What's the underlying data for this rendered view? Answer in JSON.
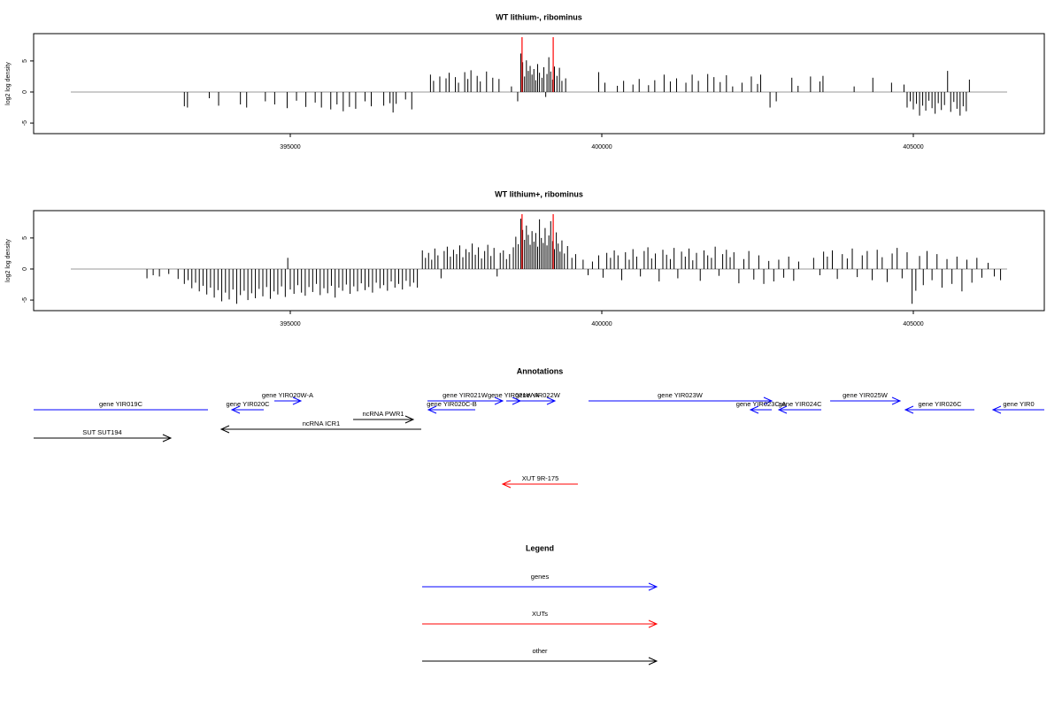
{
  "chart_data": [
    {
      "type": "spike",
      "title": "WT lithium-, ribominus",
      "ylabel": "log2 log density",
      "xlim": [
        390881,
        407102
      ],
      "ylim": [
        -6.7,
        9.4
      ],
      "xticks": [
        395000,
        400000,
        405000
      ],
      "yticks": [
        -5,
        0,
        5
      ],
      "color": "#000000",
      "baseline_color": "#999999",
      "highlights": {
        "color": "#ff0000",
        "x": [
          398720,
          399220
        ]
      },
      "x": [
        393300,
        393350,
        393700,
        393850,
        394200,
        394300,
        394600,
        394750,
        394950,
        395100,
        395250,
        395400,
        395500,
        395650,
        395750,
        395850,
        395950,
        396050,
        396200,
        396300,
        396500,
        396600,
        396650,
        396700,
        396850,
        396950,
        397250,
        397300,
        397400,
        397500,
        397550,
        397650,
        397700,
        397800,
        397850,
        397900,
        398000,
        398050,
        398150,
        398250,
        398350,
        398550,
        398650,
        398700,
        398730,
        398760,
        398790,
        398820,
        398850,
        398880,
        398910,
        398940,
        398970,
        399000,
        399040,
        399070,
        399100,
        399120,
        399150,
        399180,
        399210,
        399240,
        399280,
        399320,
        399360,
        399420,
        399950,
        400050,
        400250,
        400350,
        400500,
        400600,
        400750,
        400850,
        401000,
        401100,
        401200,
        401350,
        401450,
        401550,
        401700,
        401800,
        401900,
        402000,
        402100,
        402250,
        402400,
        402500,
        402550,
        402700,
        402800,
        403050,
        403150,
        403350,
        403500,
        403550,
        404050,
        404350,
        404650,
        404850,
        404900,
        404950,
        405000,
        405050,
        405100,
        405150,
        405200,
        405250,
        405300,
        405350,
        405400,
        405450,
        405500,
        405550,
        405600,
        405650,
        405700,
        405750,
        405800,
        405850,
        405900
      ],
      "values": [
        -2.3,
        -2.5,
        -1,
        -2.2,
        -2,
        -2.5,
        -1.5,
        -2,
        -2.6,
        -1.4,
        -2.4,
        -1.7,
        -2.5,
        -2.8,
        -2,
        -3.1,
        -2.4,
        -2.7,
        -1.5,
        -2.3,
        -2.2,
        -1.8,
        -3.3,
        -1.9,
        -1.2,
        -2.8,
        2.8,
        1.8,
        2.5,
        2.2,
        3.1,
        2.4,
        1.5,
        3.2,
        2.1,
        3.5,
        2.6,
        1.7,
        3.3,
        2.3,
        2.1,
        0.9,
        -1.5,
        6.2,
        4.8,
        2.5,
        5.1,
        3.4,
        4.2,
        2.8,
        3.7,
        1.9,
        4.5,
        3.1,
        2.3,
        4.0,
        -0.8,
        2.9,
        5.6,
        3.3,
        2.0,
        4.1,
        2.6,
        3.9,
        1.8,
        2.2,
        3.2,
        1.5,
        1.0,
        1.8,
        1.2,
        2.1,
        1.1,
        1.9,
        2.8,
        1.7,
        2.2,
        1.5,
        2.8,
        1.8,
        2.9,
        2.4,
        1.6,
        2.7,
        0.9,
        1.5,
        2.5,
        1.3,
        2.8,
        -2.5,
        -1.5,
        2.3,
        1.0,
        2.5,
        1.7,
        2.6,
        0.9,
        2.3,
        1.5,
        1.2,
        -2.5,
        -1.5,
        -2.8,
        -1.9,
        -3.8,
        -2.2,
        -3.0,
        -1.4,
        -2.6,
        -3.5,
        -1.8,
        -2.9,
        -2.1,
        3.4,
        -3.2,
        -1.6,
        -2.7,
        -3.8,
        -2.3,
        -3.1,
        2.0
      ]
    },
    {
      "type": "spike",
      "title": "WT lithium+, ribominus",
      "ylabel": "log2 log density",
      "xlim": [
        390881,
        407102
      ],
      "ylim": [
        -6.7,
        9.4
      ],
      "xticks": [
        395000,
        400000,
        405000
      ],
      "yticks": [
        -5,
        0,
        5
      ],
      "color": "#000000",
      "baseline_color": "#999999",
      "highlights": {
        "color": "#ff0000",
        "x": [
          398720,
          399220
        ]
      },
      "x": [
        392700,
        392800,
        392900,
        393050,
        393200,
        393300,
        393360,
        393420,
        393480,
        393540,
        393600,
        393660,
        393720,
        393780,
        393840,
        393900,
        393960,
        394020,
        394080,
        394140,
        394200,
        394260,
        394320,
        394380,
        394440,
        394500,
        394560,
        394620,
        394680,
        394740,
        394800,
        394860,
        394920,
        394960,
        395000,
        395060,
        395120,
        395180,
        395240,
        395300,
        395360,
        395420,
        395480,
        395540,
        395600,
        395660,
        395720,
        395780,
        395840,
        395900,
        395960,
        396020,
        396080,
        396140,
        396200,
        396260,
        396320,
        396380,
        396440,
        396500,
        396560,
        396620,
        396680,
        396740,
        396800,
        396860,
        396920,
        396980,
        397040,
        397120,
        397170,
        397220,
        397270,
        397320,
        397370,
        397420,
        397470,
        397520,
        397570,
        397620,
        397670,
        397720,
        397770,
        397820,
        397870,
        397920,
        397970,
        398020,
        398070,
        398120,
        398170,
        398220,
        398270,
        398320,
        398370,
        398420,
        398470,
        398520,
        398580,
        398620,
        398660,
        398700,
        398730,
        398760,
        398790,
        398820,
        398850,
        398880,
        398910,
        398940,
        398970,
        399000,
        399030,
        399060,
        399090,
        399120,
        399150,
        399180,
        399210,
        399240,
        399270,
        399300,
        399330,
        399360,
        399400,
        399450,
        399520,
        399580,
        399700,
        399780,
        399850,
        399950,
        400020,
        400080,
        400140,
        400200,
        400260,
        400320,
        400380,
        400440,
        400500,
        400560,
        400620,
        400680,
        400740,
        400800,
        400860,
        400920,
        400980,
        401040,
        401100,
        401160,
        401220,
        401280,
        401340,
        401400,
        401460,
        401520,
        401580,
        401640,
        401700,
        401760,
        401820,
        401880,
        401940,
        402000,
        402060,
        402120,
        402200,
        402280,
        402360,
        402440,
        402520,
        402600,
        402680,
        402760,
        402840,
        402920,
        403000,
        403080,
        403160,
        403400,
        403500,
        403560,
        403620,
        403700,
        403780,
        403860,
        403940,
        404020,
        404100,
        404180,
        404260,
        404340,
        404420,
        404500,
        404580,
        404660,
        404740,
        404820,
        404900,
        404980,
        405040,
        405100,
        405160,
        405220,
        405300,
        405380,
        405460,
        405540,
        405620,
        405700,
        405780,
        405860,
        405940,
        406020,
        406100,
        406200,
        406300,
        406400
      ],
      "values": [
        -1.5,
        -1,
        -1.2,
        -0.8,
        -1.6,
        -2.4,
        -1.8,
        -3.1,
        -2.2,
        -3.6,
        -2.7,
        -4.1,
        -3.0,
        -4.6,
        -3.4,
        -5.2,
        -3.8,
        -4.9,
        -3.3,
        -5.6,
        -4.2,
        -3.5,
        -5.0,
        -3.9,
        -4.7,
        -3.2,
        -4.4,
        -2.9,
        -4.8,
        -3.6,
        -4.1,
        -2.8,
        -4.5,
        1.8,
        -3.3,
        -4.0,
        -2.6,
        -3.8,
        -4.3,
        -2.9,
        -3.7,
        -2.4,
        -4.2,
        -3.1,
        -3.9,
        -2.7,
        -4.6,
        -3.0,
        -3.5,
        -2.5,
        -4.0,
        -2.8,
        -3.6,
        -2.3,
        -3.4,
        -2.9,
        -3.8,
        -2.2,
        -3.1,
        -2.6,
        -3.5,
        -2.0,
        -3.0,
        -2.4,
        -3.3,
        -1.9,
        -2.8,
        -2.2,
        -3.0,
        3.0,
        1.8,
        2.6,
        1.5,
        3.3,
        2.2,
        -1.5,
        2.9,
        3.6,
        2.0,
        3.1,
        2.4,
        3.8,
        1.9,
        3.2,
        2.7,
        4.1,
        2.3,
        3.5,
        1.7,
        2.9,
        3.9,
        2.1,
        3.4,
        -1.2,
        2.6,
        3.0,
        1.6,
        2.4,
        3.5,
        5.2,
        4.0,
        8.1,
        6.3,
        4.7,
        7.0,
        5.5,
        3.9,
        6.1,
        4.4,
        5.8,
        3.6,
        8.0,
        5.0,
        4.2,
        6.6,
        3.8,
        5.4,
        7.7,
        4.5,
        3.2,
        5.9,
        4.1,
        2.8,
        4.6,
        2.5,
        3.7,
        1.8,
        2.4,
        1.5,
        -1.0,
        1.2,
        2.2,
        -1.4,
        2.6,
        1.8,
        3.0,
        2.2,
        -1.8,
        2.7,
        1.5,
        3.2,
        2.0,
        -1.2,
        2.9,
        3.5,
        1.7,
        2.5,
        -2.0,
        3.1,
        2.3,
        1.6,
        3.4,
        -1.5,
        2.8,
        2.0,
        3.3,
        1.4,
        2.6,
        -1.9,
        3.0,
        2.2,
        1.8,
        3.6,
        -1.1,
        2.4,
        3.1,
        1.9,
        2.7,
        -2.3,
        1.6,
        2.9,
        -1.7,
        2.2,
        -2.4,
        1.3,
        -2.0,
        1.5,
        -1.4,
        2.0,
        -1.9,
        1.2,
        1.8,
        -1.0,
        2.8,
        2.0,
        3.0,
        -1.6,
        2.4,
        1.7,
        3.3,
        -1.3,
        2.2,
        2.9,
        -1.8,
        3.1,
        1.9,
        -2.1,
        2.5,
        3.4,
        -1.5,
        2.7,
        -5.6,
        -3.5,
        2.1,
        -2.6,
        2.9,
        -1.8,
        2.4,
        -3.0,
        1.6,
        -2.4,
        2.0,
        -3.6,
        1.5,
        -2.2,
        1.8,
        -1.4,
        1.0,
        -1.2,
        -1.8
      ]
    },
    {
      "type": "annotation",
      "title": "Annotations",
      "xlim": [
        390881,
        407102
      ],
      "features": [
        {
          "name": "gene YIR019C",
          "start": 389500,
          "end": 393679,
          "strand": "-",
          "color": "#0000ff"
        },
        {
          "name": "gene YIR020C",
          "start": 394063,
          "end": 394574,
          "strand": "-",
          "color": "#0000ff"
        },
        {
          "name": "gene YIR020W-A",
          "start": 394744,
          "end": 395170,
          "strand": "+",
          "color": "#0000ff"
        },
        {
          "name": "ncRNA PWR1",
          "start": 396009,
          "end": 396974,
          "strand": "+",
          "color": "#000000"
        },
        {
          "name": "ncRNA ICR1",
          "start": 393892,
          "end": 397102,
          "strand": "-",
          "color": "#000000"
        },
        {
          "name": "SUT SUT194",
          "start": 390500,
          "end": 393082,
          "strand": "+",
          "color": "#000000"
        },
        {
          "name": "gene YIR020C-B",
          "start": 397216,
          "end": 397969,
          "strand": "-",
          "color": "#0000ff"
        },
        {
          "name": "gene YIR021W",
          "start": 397202,
          "end": 398409,
          "strand": "+",
          "color": "#0000ff"
        },
        {
          "name": "gene YIR021W-A",
          "start": 398466,
          "end": 398693,
          "strand": "+",
          "color": "#0000ff"
        },
        {
          "name": "gene YIR022W",
          "start": 398693,
          "end": 399247,
          "strand": "+",
          "color": "#0000ff"
        },
        {
          "name": "gene YIR023W",
          "start": 399787,
          "end": 402727,
          "strand": "+",
          "color": "#0000ff"
        },
        {
          "name": "gene YIR023C-A",
          "start": 402386,
          "end": 402727,
          "strand": "-",
          "color": "#0000ff"
        },
        {
          "name": "gene YIR024C",
          "start": 402841,
          "end": 403523,
          "strand": "-",
          "color": "#0000ff"
        },
        {
          "name": "gene YIR025W",
          "start": 403665,
          "end": 404787,
          "strand": "+",
          "color": "#0000ff"
        },
        {
          "name": "gene YIR026C",
          "start": 404872,
          "end": 405980,
          "strand": "-",
          "color": "#0000ff"
        },
        {
          "name": "gene YIR0",
          "start": 406278,
          "end": 407500,
          "strand": "-",
          "color": "#0000ff"
        },
        {
          "name": "XUT 9R-175",
          "start": 398409,
          "end": 399616,
          "strand": "-",
          "color": "#ff0000"
        }
      ]
    },
    {
      "type": "legend",
      "title": "Legend",
      "items": [
        {
          "name": "genes",
          "color": "#0000ff"
        },
        {
          "name": "XUTs",
          "color": "#ff0000"
        },
        {
          "name": "other",
          "color": "#000000"
        }
      ]
    }
  ]
}
